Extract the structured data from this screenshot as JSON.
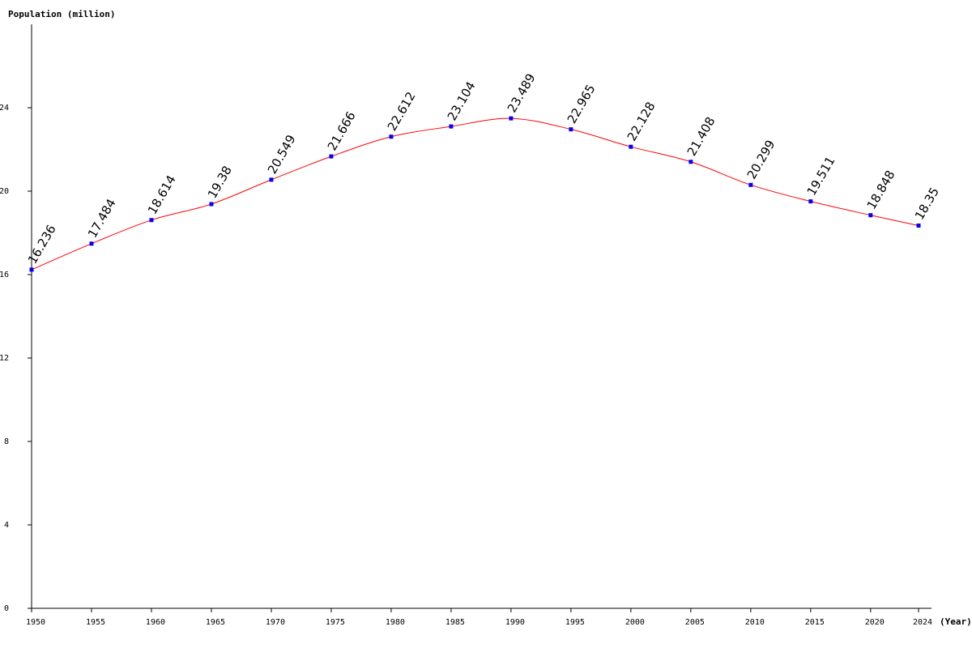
{
  "chart_data": {
    "type": "line",
    "title": "",
    "ylabel": "Population (million)",
    "xlabel": "(Year)",
    "x": [
      1950,
      1955,
      1960,
      1965,
      1970,
      1975,
      1980,
      1985,
      1990,
      1995,
      2000,
      2005,
      2010,
      2015,
      2020,
      2024
    ],
    "series": [
      {
        "values": [
          16.236,
          17.484,
          18.614,
          19.38,
          20.549,
          21.666,
          22.612,
          23.104,
          23.489,
          22.965,
          22.128,
          21.408,
          20.299,
          19.511,
          18.848,
          18.35
        ],
        "labels": [
          "16.236",
          "17.484",
          "18.614",
          "19.38",
          "20.549",
          "21.666",
          "22.612",
          "23.104",
          "23.489",
          "22.965",
          "22.128",
          "21.408",
          "20.299",
          "19.511",
          "18.848",
          "18.35"
        ]
      }
    ],
    "x_ticks": [
      "1950",
      "1955",
      "1960",
      "1965",
      "1970",
      "1975",
      "1980",
      "1985",
      "1990",
      "1995",
      "2000",
      "2005",
      "2010",
      "2015",
      "2020",
      "2024"
    ],
    "y_ticks": [
      "0",
      "4",
      "8",
      "12",
      "16",
      "20",
      "24"
    ],
    "ylim": [
      0,
      28
    ],
    "xlim": [
      1950,
      2024
    ],
    "grid": false,
    "line_color": "#ff0000",
    "marker_color": "#0000ff"
  }
}
